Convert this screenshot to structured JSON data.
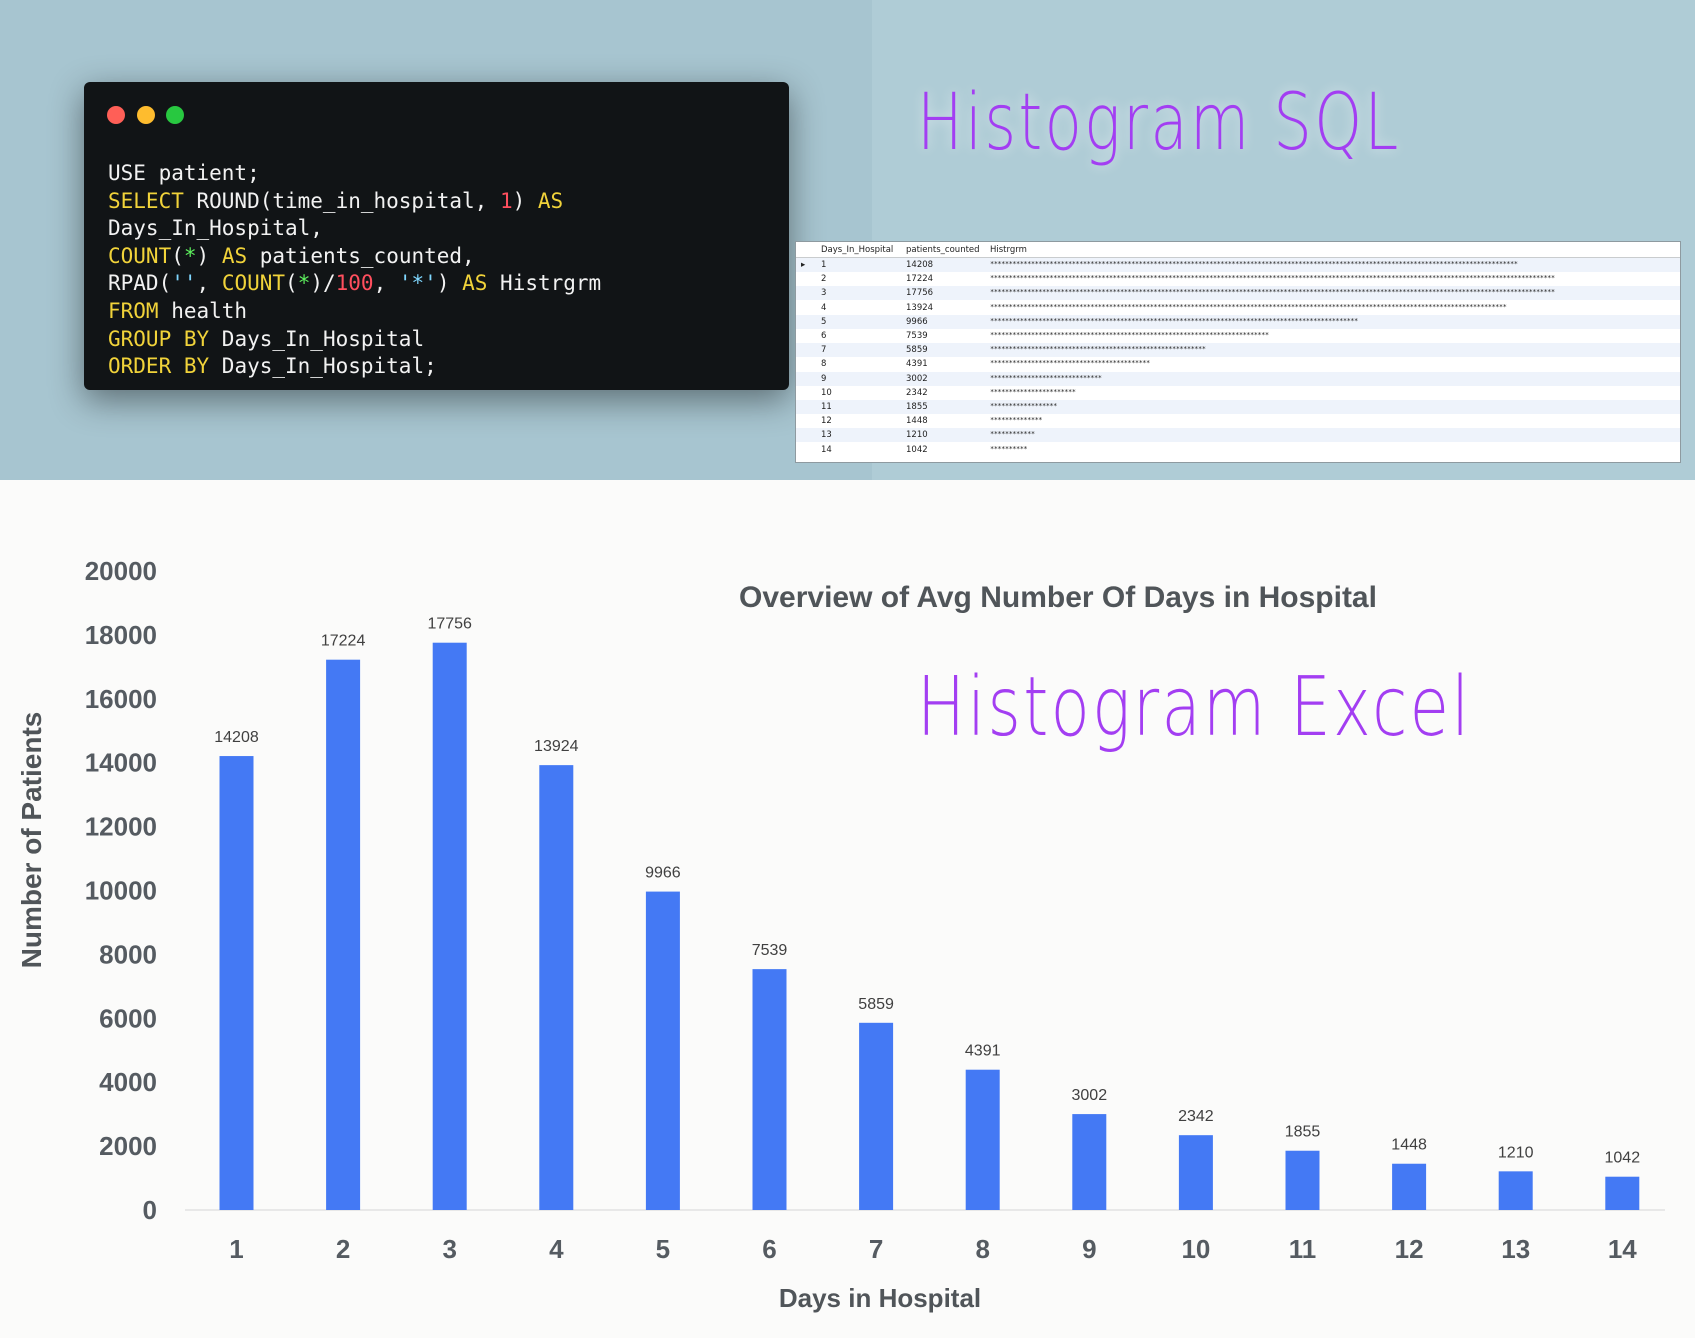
{
  "code_window": {
    "lines": [
      [
        {
          "t": "USE patient;",
          "c": "plain"
        }
      ],
      [
        {
          "t": "SELECT",
          "c": "kw"
        },
        {
          "t": " ROUND(time_in_hospital, ",
          "c": "plain"
        },
        {
          "t": "1",
          "c": "num"
        },
        {
          "t": ") ",
          "c": "plain"
        },
        {
          "t": "AS",
          "c": "kw"
        }
      ],
      [
        {
          "t": "Days_In_Hospital,",
          "c": "plain"
        }
      ],
      [
        {
          "t": "COUNT",
          "c": "kw"
        },
        {
          "t": "(",
          "c": "plain"
        },
        {
          "t": "*",
          "c": "sym"
        },
        {
          "t": ") ",
          "c": "plain"
        },
        {
          "t": "AS",
          "c": "kw"
        },
        {
          "t": " patients_counted,",
          "c": "plain"
        }
      ],
      [
        {
          "t": "RPAD(",
          "c": "plain"
        },
        {
          "t": "''",
          "c": "str"
        },
        {
          "t": ", ",
          "c": "plain"
        },
        {
          "t": "COUNT",
          "c": "kw"
        },
        {
          "t": "(",
          "c": "plain"
        },
        {
          "t": "*",
          "c": "sym"
        },
        {
          "t": ")/",
          "c": "plain"
        },
        {
          "t": "100",
          "c": "num"
        },
        {
          "t": ", ",
          "c": "plain"
        },
        {
          "t": "'*'",
          "c": "str"
        },
        {
          "t": ") ",
          "c": "plain"
        },
        {
          "t": "AS",
          "c": "kw"
        },
        {
          "t": " Histrgrm",
          "c": "plain"
        }
      ],
      [
        {
          "t": "FROM",
          "c": "kw"
        },
        {
          "t": " health",
          "c": "plain"
        }
      ],
      [
        {
          "t": "GROUP BY",
          "c": "kw"
        },
        {
          "t": " Days_In_Hospital",
          "c": "plain"
        }
      ],
      [
        {
          "t": "ORDER BY",
          "c": "kw"
        },
        {
          "t": " Days_In_Hospital;",
          "c": "plain"
        }
      ]
    ]
  },
  "headings": {
    "sql": "Histogram SQL",
    "excel": "Histogram Excel"
  },
  "result_grid": {
    "columns": [
      "Days_In_Hospital",
      "patients_counted",
      "Histrgrm"
    ],
    "rows": [
      {
        "day": "1",
        "count": "14208"
      },
      {
        "day": "2",
        "count": "17224"
      },
      {
        "day": "3",
        "count": "17756"
      },
      {
        "day": "4",
        "count": "13924"
      },
      {
        "day": "5",
        "count": "9966"
      },
      {
        "day": "6",
        "count": "7539"
      },
      {
        "day": "7",
        "count": "5859"
      },
      {
        "day": "8",
        "count": "4391"
      },
      {
        "day": "9",
        "count": "3002"
      },
      {
        "day": "10",
        "count": "2342"
      },
      {
        "day": "11",
        "count": "1855"
      },
      {
        "day": "12",
        "count": "1448"
      },
      {
        "day": "13",
        "count": "1210"
      },
      {
        "day": "14",
        "count": "1042"
      }
    ]
  },
  "chart_data": {
    "type": "bar",
    "title": "Overview of Avg Number Of Days in Hospital",
    "xlabel": "Days in Hospital",
    "ylabel": "Number of Patients",
    "categories": [
      "1",
      "2",
      "3",
      "4",
      "5",
      "6",
      "7",
      "8",
      "9",
      "10",
      "11",
      "12",
      "13",
      "14"
    ],
    "values": [
      14208,
      17224,
      17756,
      13924,
      9966,
      7539,
      5859,
      4391,
      3002,
      2342,
      1855,
      1448,
      1210,
      1042
    ],
    "ylim": [
      0,
      20000
    ],
    "yticks": [
      0,
      2000,
      4000,
      6000,
      8000,
      10000,
      12000,
      14000,
      16000,
      18000,
      20000
    ],
    "bar_color": "#4479f4",
    "grid": false,
    "legend": "none"
  }
}
